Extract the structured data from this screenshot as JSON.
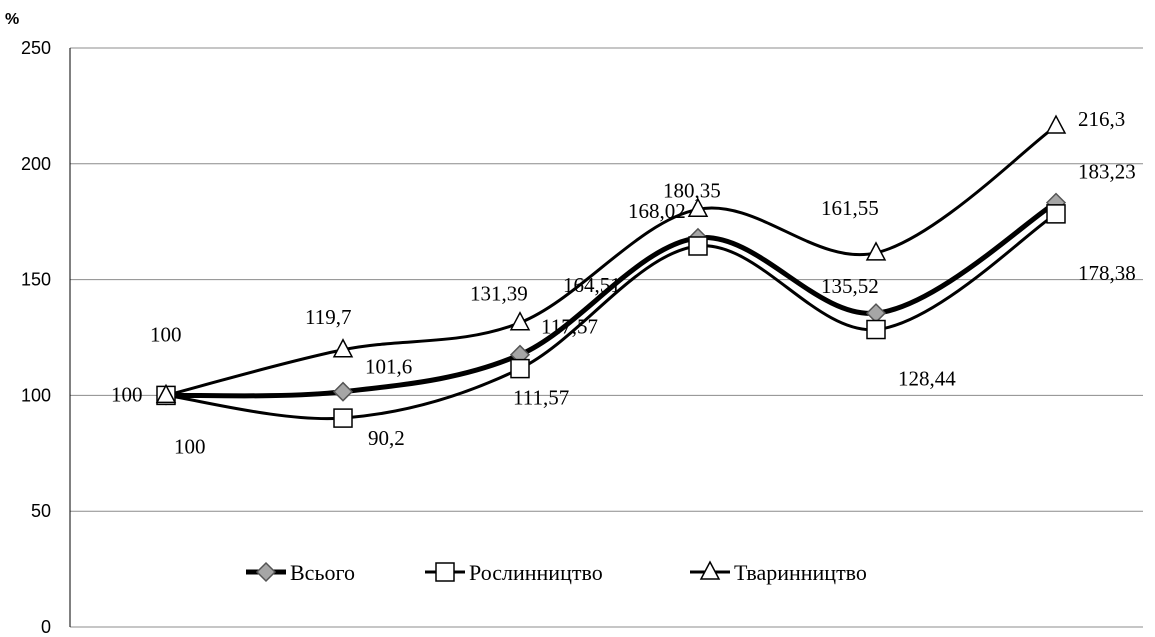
{
  "chart_data": {
    "type": "line",
    "ylabel": "%",
    "ylim": [
      0,
      250
    ],
    "yticks": [
      0,
      50,
      100,
      150,
      200,
      250
    ],
    "grid": true,
    "legend_placement": "bottom-center",
    "x": [
      1,
      2,
      3,
      4,
      5,
      6
    ],
    "series": [
      {
        "name": "Всього",
        "marker": "diamond",
        "values": [
          100,
          101.6,
          117.57,
          168.02,
          135.52,
          183.23
        ],
        "labels": [
          "100",
          "101,6",
          "117,57",
          "168,02",
          "135,52",
          "183,23"
        ]
      },
      {
        "name": "Рослинництво",
        "marker": "square",
        "values": [
          100,
          90.2,
          111.57,
          164.51,
          128.44,
          178.38
        ],
        "labels": [
          "100",
          "90,2",
          "111,57",
          "164,51",
          "128,44",
          "178,38"
        ]
      },
      {
        "name": "Тваринництво",
        "marker": "triangle",
        "values": [
          100,
          119.7,
          131.39,
          180.35,
          161.55,
          216.3
        ],
        "labels": [
          "100",
          "119,7",
          "131,39",
          "180,35",
          "161,55",
          "216,3"
        ]
      }
    ],
    "colors": {
      "line": "#000000",
      "grid": "#8c8c8c",
      "diamond_fill": "#a6a6a6",
      "marker_fill": "#ffffff"
    }
  }
}
